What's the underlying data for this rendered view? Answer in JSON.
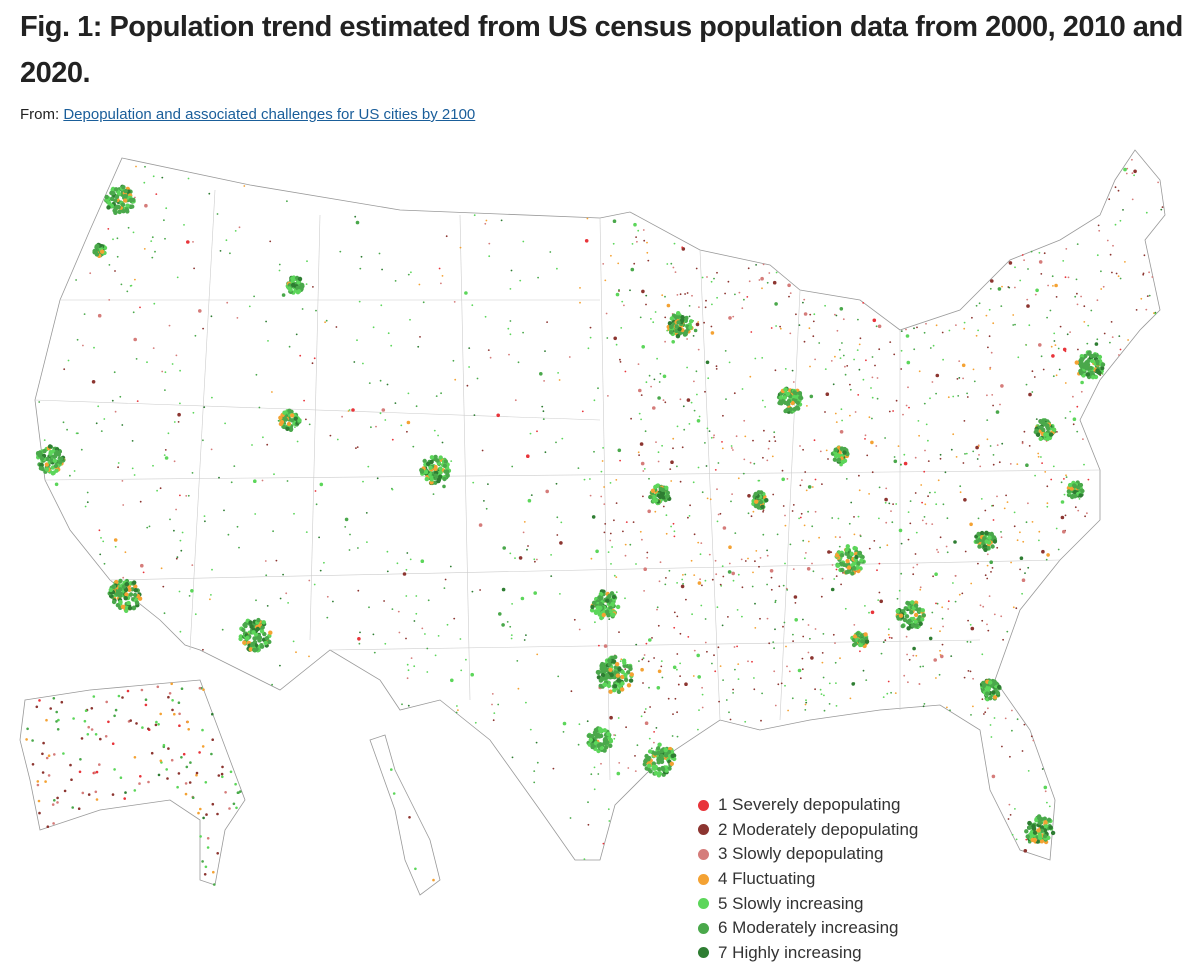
{
  "title": "Fig. 1: Population trend estimated from US census population data from 2000, 2010 and 2020.",
  "source": {
    "prefix": "From:",
    "link_text": "Depopulation and associated challenges for US cities by 2100"
  },
  "map": {
    "region": "United States (contiguous, with Alaska and Hawaii insets)",
    "legend": [
      {
        "label": "1 Severely depopulating",
        "color": "#e8343a"
      },
      {
        "label": "2 Moderately depopulating",
        "color": "#8c3530"
      },
      {
        "label": "3 Slowly depopulating",
        "color": "#d57c7a"
      },
      {
        "label": "4 Fluctuating",
        "color": "#f4a233"
      },
      {
        "label": "5 Slowly increasing",
        "color": "#5cd65a"
      },
      {
        "label": "6 Moderately increasing",
        "color": "#4aa84b"
      },
      {
        "label": "7 Highly increasing",
        "color": "#2e7d32"
      }
    ]
  }
}
